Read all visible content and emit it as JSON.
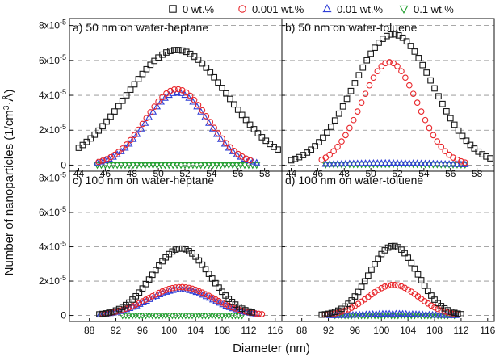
{
  "figure": {
    "ylabel": "Number of nanoparticles (1/cm",
    "ylabel_sup": "3",
    "ylabel_tail": "·Å)",
    "xlabel": "Diameter (nm)",
    "legend": [
      {
        "name": "0 wt.%",
        "marker": "square",
        "color": "#1a1a1a"
      },
      {
        "name": "0.001 wt.%",
        "marker": "circle",
        "color": "#e8262b"
      },
      {
        "name": "0.01 wt.%",
        "marker": "triangle-up",
        "color": "#2f3fd6"
      },
      {
        "name": "0.1 wt.%",
        "marker": "triangle-down",
        "color": "#1f9e2c"
      }
    ],
    "y_ticks": [
      {
        "mant": "0",
        "exp": ""
      },
      {
        "mant": "2x10",
        "exp": "-5"
      },
      {
        "mant": "4x10",
        "exp": "-5"
      },
      {
        "mant": "6x10",
        "exp": "-5"
      },
      {
        "mant": "8x10",
        "exp": "-5"
      }
    ]
  },
  "chart_data": [
    {
      "type": "scatter",
      "title": "a) 50 nm on water-heptane",
      "xlim": [
        43.3,
        59.3
      ],
      "ylim": [
        -0.35,
        8.4
      ],
      "y_unit": "1e-5",
      "xticks": [
        44,
        46,
        48,
        50,
        52,
        54,
        56,
        58
      ],
      "x_range": [
        44,
        59
      ],
      "x_step": 0.3,
      "series": [
        {
          "name": "0 wt.%",
          "peak": 6.6,
          "center": 51.4,
          "sigma": 3.8,
          "xmin": 44.0,
          "xmax": 59.0
        },
        {
          "name": "0.001 wt.%",
          "peak": 4.35,
          "center": 51.4,
          "sigma": 2.35,
          "xmin": 45.5,
          "xmax": 57.0
        },
        {
          "name": "0.01 wt.%",
          "peak": 4.15,
          "center": 51.4,
          "sigma": 2.3,
          "xmin": 45.4,
          "xmax": 57.4
        },
        {
          "name": "0.1 wt.%",
          "peak": 0.0,
          "center": 51.4,
          "sigma": 3.0,
          "xmin": 45.4,
          "xmax": 57.4
        }
      ]
    },
    {
      "type": "scatter",
      "title": "b) 50 nm on water-toluene",
      "xlim": [
        43.3,
        59.3
      ],
      "ylim": [
        -0.35,
        8.4
      ],
      "y_unit": "1e-5",
      "xticks": [
        44,
        46,
        48,
        50,
        52,
        54,
        56,
        58
      ],
      "x_range": [
        44,
        59
      ],
      "x_step": 0.3,
      "series": [
        {
          "name": "0 wt.%",
          "peak": 7.5,
          "center": 51.7,
          "sigma": 3.0,
          "xmin": 44.0,
          "xmax": 59.0
        },
        {
          "name": "0.001 wt.%",
          "peak": 5.9,
          "center": 51.4,
          "sigma": 2.1,
          "xmin": 46.3,
          "xmax": 57.1
        },
        {
          "name": "0.01 wt.%",
          "peak": 0.12,
          "center": 51.4,
          "sigma": 4.0,
          "xmin": 46.6,
          "xmax": 57.3
        },
        {
          "name": "0.1 wt.%",
          "peak": 0.05,
          "center": 51.4,
          "sigma": 4.0,
          "xmin": 46.6,
          "xmax": 57.3
        }
      ]
    },
    {
      "type": "scatter",
      "title": "c) 100 nm on water-heptane",
      "xlim": [
        85.0,
        117.0
      ],
      "ylim": [
        -0.35,
        8.4
      ],
      "y_unit": "1e-5",
      "xticks": [
        88,
        92,
        96,
        100,
        104,
        108,
        112,
        116
      ],
      "x_range": [
        88,
        116
      ],
      "x_step": 0.5,
      "series": [
        {
          "name": "0 wt.%",
          "peak": 3.9,
          "center": 101.8,
          "sigma": 4.3,
          "xmin": 89.5,
          "xmax": 112.8
        },
        {
          "name": "0.001 wt.%",
          "peak": 1.65,
          "center": 101.8,
          "sigma": 4.9,
          "xmin": 90.0,
          "xmax": 114.0
        },
        {
          "name": "0.01 wt.%",
          "peak": 1.52,
          "center": 101.8,
          "sigma": 4.8,
          "xmin": 89.6,
          "xmax": 113.2
        },
        {
          "name": "0.1 wt.%",
          "peak": 0.0,
          "center": 101.8,
          "sigma": 4.0,
          "xmin": 93.0,
          "xmax": 111.0
        }
      ]
    },
    {
      "type": "scatter",
      "title": "d) 100 nm on water-toluene",
      "xlim": [
        85.0,
        117.0
      ],
      "ylim": [
        -0.35,
        8.4
      ],
      "y_unit": "1e-5",
      "xticks": [
        88,
        92,
        96,
        100,
        104,
        108,
        112,
        116
      ],
      "x_range": [
        88,
        116
      ],
      "x_step": 0.5,
      "series": [
        {
          "name": "0 wt.%",
          "peak": 4.05,
          "center": 101.8,
          "sigma": 3.6,
          "xmin": 91.0,
          "xmax": 112.0
        },
        {
          "name": "0.001 wt.%",
          "peak": 1.78,
          "center": 101.8,
          "sigma": 3.8,
          "xmin": 91.5,
          "xmax": 111.8
        },
        {
          "name": "0.01 wt.%",
          "peak": 0.1,
          "center": 101.8,
          "sigma": 4.0,
          "xmin": 92.2,
          "xmax": 111.5
        },
        {
          "name": "0.1 wt.%",
          "peak": 0.0,
          "center": 101.8,
          "sigma": 4.0,
          "xmin": 93.0,
          "xmax": 111.0
        }
      ]
    }
  ]
}
